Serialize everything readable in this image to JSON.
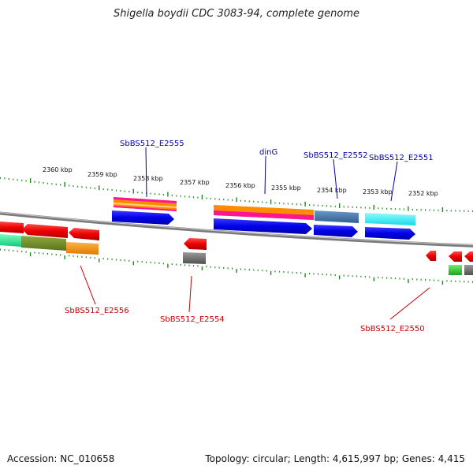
{
  "title": "Shigella boydii CDC 3083-94, complete genome",
  "footer": {
    "accession": "Accession: NC_010658",
    "summary": "Topology: circular; Length: 4,615,997 bp; Genes: 4,415"
  },
  "ticks": [
    "2360 kbp",
    "2359 kbp",
    "2358 kbp",
    "2357 kbp",
    "2356 kbp",
    "2355 kbp",
    "2354 kbp",
    "2353 kbp",
    "2352 kbp"
  ],
  "genes_top": [
    {
      "label": "SbBS512_E2555",
      "color": "#0000aa"
    },
    {
      "label": "dinG",
      "color": "#0000aa"
    },
    {
      "label": "SbBS512_E2552",
      "color": "#0000aa"
    },
    {
      "label": "SbBS512_E2551",
      "color": "#0000aa"
    }
  ],
  "genes_bottom": [
    {
      "label": "SbBS512_E2556",
      "color": "#cc0000"
    },
    {
      "label": "SbBS512_E2554",
      "color": "#cc0000"
    },
    {
      "label": "SbBS512_E2550",
      "color": "#cc0000"
    }
  ],
  "colors": {
    "forward": "#0000ee",
    "reverse": "#ee0000",
    "tick": "#228822",
    "backbone": "#888888"
  }
}
